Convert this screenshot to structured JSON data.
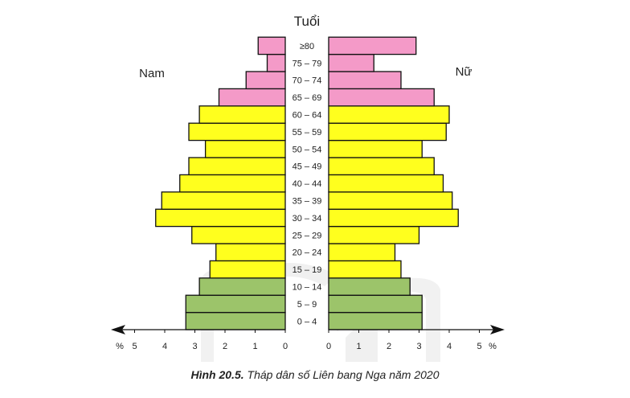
{
  "chart_data": {
    "type": "bar",
    "orientation": "horizontal-population-pyramid",
    "ylabel": "Tuổi",
    "xlabel": "%",
    "xlim": [
      0,
      5
    ],
    "x_ticks": [
      0,
      1,
      2,
      3,
      4,
      5
    ],
    "grid": false,
    "categories": [
      "0 – 4",
      "5 – 9",
      "10 – 14",
      "15 – 19",
      "20 – 24",
      "25 – 29",
      "30 – 34",
      "35 – 39",
      "40 – 44",
      "45 – 49",
      "50 – 54",
      "55 – 59",
      "60 – 64",
      "65 – 69",
      "70 – 74",
      "75 – 79",
      "≥80"
    ],
    "series": [
      {
        "name": "Nam",
        "side": "left",
        "values": [
          3.3,
          3.3,
          2.85,
          2.5,
          2.3,
          3.1,
          4.3,
          4.1,
          3.5,
          3.2,
          2.65,
          3.2,
          2.85,
          2.2,
          1.3,
          0.6,
          0.9
        ]
      },
      {
        "name": "Nữ",
        "side": "right",
        "values": [
          3.1,
          3.1,
          2.7,
          2.4,
          2.2,
          3.0,
          4.3,
          4.1,
          3.8,
          3.5,
          3.1,
          3.9,
          4.0,
          3.5,
          2.4,
          1.5,
          2.9
        ]
      }
    ],
    "age_groups": [
      {
        "name": "0-14",
        "color": "#9cc46a",
        "count": 3
      },
      {
        "name": "15-64",
        "color": "#ffff1e",
        "count": 10
      },
      {
        "name": "65+",
        "color": "#f49ac8",
        "count": 4
      }
    ],
    "caption_prefix": "Hình 20.5.",
    "caption_text": " Tháp dân số Liên bang Nga năm 2020"
  }
}
